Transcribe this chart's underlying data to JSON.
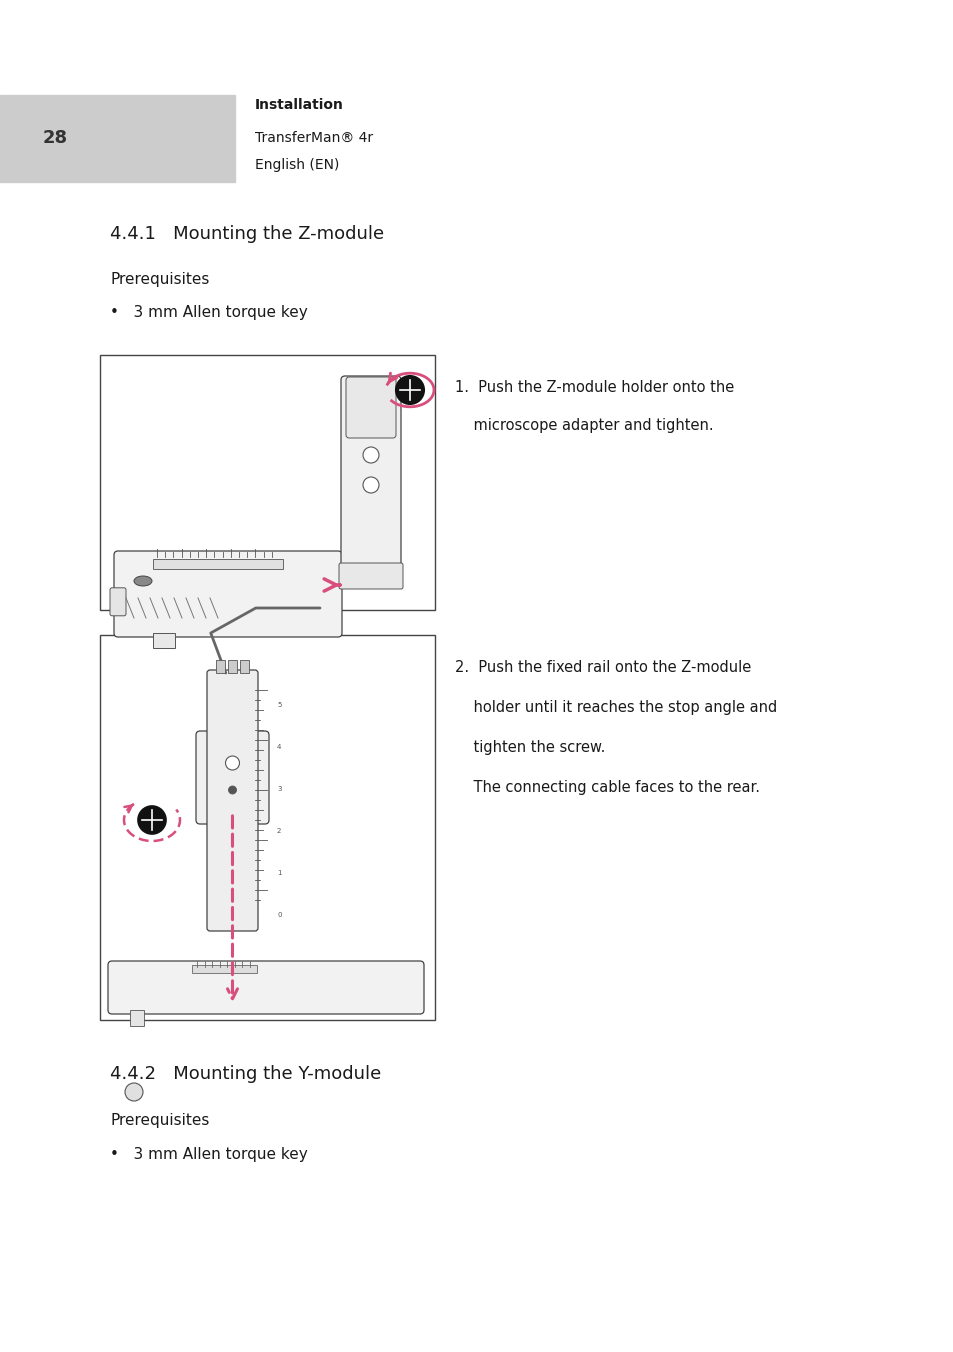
{
  "page_number": "28",
  "header_label": "Installation",
  "header_line2": "TransferMan® 4r",
  "header_line3": "English (EN)",
  "section_title": "4.4.1   Mounting the Z-module",
  "prerequisites_label": "Prerequisites",
  "bullet_item": "3 mm Allen torque key",
  "section2_title": "4.4.2   Mounting the Y-module",
  "prerequisites_label2": "Prerequisites",
  "bullet_item2": "3 mm Allen torque key",
  "step1_line1": "1.  Push the Z-module holder onto the",
  "step1_line2": "    microscope adapter and tighten.",
  "step2_line1": "2.  Push the fixed rail onto the Z-module",
  "step2_line2": "    holder until it reaches the stop angle and",
  "step2_line3": "    tighten the screw.",
  "step2_line4": "    The connecting cable faces to the rear.",
  "bg_color": "#ffffff",
  "header_bg": "#cccccc",
  "text_color": "#1a1a1a",
  "arrow_color": "#d94f7c",
  "border_color": "#444444",
  "fig_w": 9.54,
  "fig_h": 13.52,
  "dpi": 100
}
